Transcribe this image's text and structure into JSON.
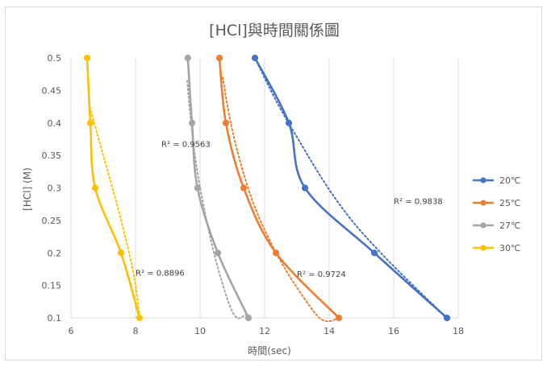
{
  "chart_data": {
    "type": "scatter",
    "title": "[HCl]與時間關係圖",
    "xlabel": "時間(sec)",
    "ylabel": "[HCl] (M)",
    "xlim": [
      6,
      18
    ],
    "ylim": [
      0.1,
      0.5
    ],
    "x_ticks": [
      "6",
      "8",
      "10",
      "12",
      "14",
      "16",
      "18"
    ],
    "y_ticks": [
      "0.1",
      "0.15",
      "0.2",
      "0.25",
      "0.3",
      "0.35",
      "0.4",
      "0.45",
      "0.5"
    ],
    "grid": "vertical",
    "legend_position": "right",
    "series": [
      {
        "name": "20℃",
        "color": "#4472C4",
        "points": [
          [
            11.7,
            0.5
          ],
          [
            12.75,
            0.4
          ],
          [
            13.25,
            0.3
          ],
          [
            15.4,
            0.2
          ],
          [
            17.65,
            0.1
          ]
        ],
        "trendline": [
          [
            11.7,
            0.5
          ],
          [
            12.4,
            0.43
          ],
          [
            13.1,
            0.37
          ],
          [
            13.9,
            0.305
          ],
          [
            14.7,
            0.25
          ],
          [
            15.6,
            0.2
          ],
          [
            16.6,
            0.15
          ],
          [
            17.65,
            0.1
          ]
        ],
        "r2": "R² = 0.9838"
      },
      {
        "name": "25℃",
        "color": "#ED7D31",
        "points": [
          [
            10.6,
            0.5
          ],
          [
            10.8,
            0.4
          ],
          [
            11.35,
            0.3
          ],
          [
            12.35,
            0.2
          ],
          [
            14.3,
            0.1
          ]
        ],
        "trendline": [
          [
            10.7,
            0.47
          ],
          [
            10.95,
            0.4
          ],
          [
            11.3,
            0.33
          ],
          [
            11.7,
            0.27
          ],
          [
            12.15,
            0.22
          ],
          [
            12.7,
            0.17
          ],
          [
            13.3,
            0.125
          ],
          [
            13.7,
            0.1
          ],
          [
            14.0,
            0.095
          ],
          [
            14.3,
            0.1
          ]
        ],
        "r2": "R² = 0.9724"
      },
      {
        "name": "27℃",
        "color": "#A5A5A5",
        "points": [
          [
            9.62,
            0.5
          ],
          [
            9.75,
            0.4
          ],
          [
            9.92,
            0.3
          ],
          [
            10.55,
            0.2
          ],
          [
            11.5,
            0.1
          ]
        ],
        "trendline": [
          [
            9.6,
            0.465
          ],
          [
            9.72,
            0.4
          ],
          [
            9.9,
            0.33
          ],
          [
            10.12,
            0.27
          ],
          [
            10.38,
            0.21
          ],
          [
            10.65,
            0.16
          ],
          [
            10.95,
            0.115
          ],
          [
            11.15,
            0.1
          ],
          [
            11.32,
            0.102
          ],
          [
            11.5,
            0.107
          ]
        ],
        "r2": "R² = 0.9563"
      },
      {
        "name": "30℃",
        "color": "#FFC000",
        "points": [
          [
            6.5,
            0.5
          ],
          [
            6.6,
            0.4
          ],
          [
            6.75,
            0.3
          ],
          [
            7.55,
            0.2
          ],
          [
            8.12,
            0.1
          ]
        ],
        "trendline": [
          [
            6.55,
            0.43
          ],
          [
            7.0,
            0.35
          ],
          [
            7.45,
            0.27
          ],
          [
            7.8,
            0.2
          ],
          [
            8.0,
            0.15
          ],
          [
            8.12,
            0.1
          ]
        ],
        "r2": "R² = 0.8896"
      }
    ]
  }
}
